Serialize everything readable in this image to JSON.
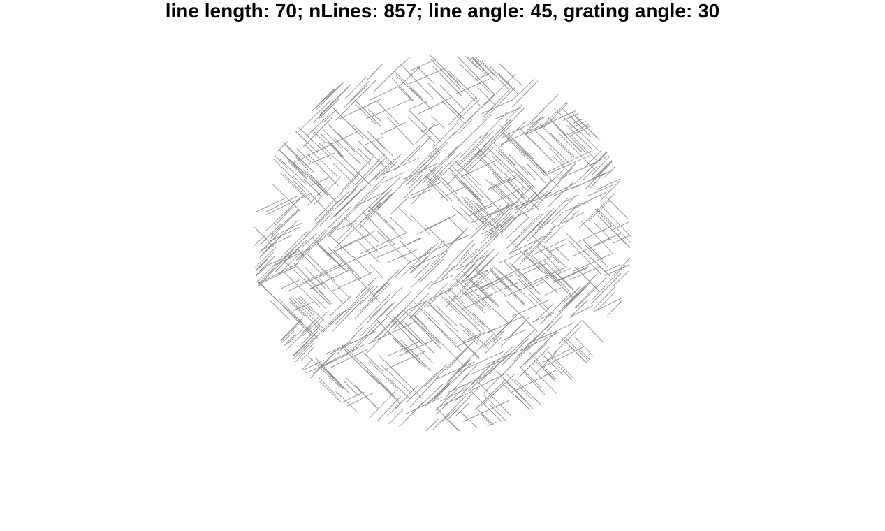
{
  "figure": {
    "title": "line length: 70; nLines: 857; line angle: 45, grating angle: 30"
  },
  "stimulus": {
    "line_length": 70,
    "n_lines": 857,
    "line_angle_deg": 45,
    "grating_angle_deg": 30,
    "line_color": "#8a8a8a",
    "background_color": "#ffffff"
  }
}
